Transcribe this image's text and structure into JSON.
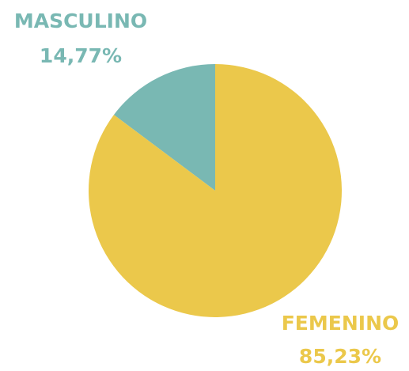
{
  "chart_data": {
    "type": "pie",
    "categories": [
      "MASCULINO",
      "FEMENINO"
    ],
    "values": [
      14.77,
      85.23
    ],
    "value_labels": [
      "14,77%",
      "85,23%"
    ],
    "colors": [
      "#79b8b3",
      "#ebc84b"
    ]
  }
}
